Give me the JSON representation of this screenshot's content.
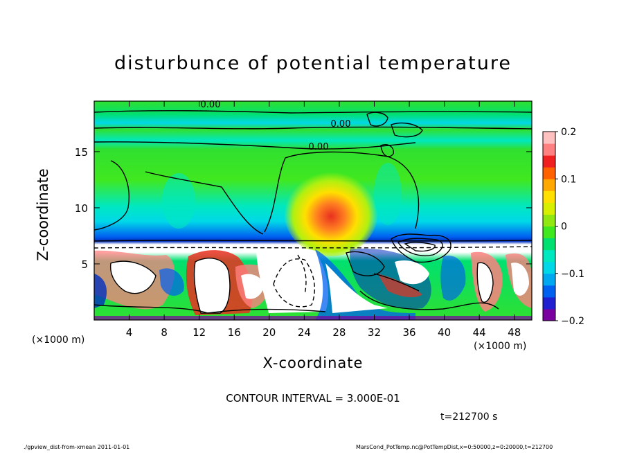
{
  "chart_data": {
    "type": "heatmap",
    "title": "disturbunce of potential temperature",
    "xlabel": "X-coordinate",
    "ylabel": "Z-coordinate",
    "x_unit": "(×1000 m)",
    "y_unit": "(×1000 m)",
    "xlim": [
      0,
      50
    ],
    "ylim": [
      0,
      19.5
    ],
    "x_ticks": [
      4,
      8,
      12,
      16,
      20,
      24,
      28,
      32,
      36,
      40,
      44,
      48
    ],
    "y_ticks": [
      5,
      10,
      15
    ],
    "colorbar": {
      "ticks": [
        0.2,
        0.1,
        0,
        -0.1,
        -0.2
      ],
      "range": [
        -0.2,
        0.2
      ],
      "colors": [
        "#7a00a0",
        "#2020d0",
        "#0060f0",
        "#00a8f0",
        "#00d8e8",
        "#00e8c0",
        "#00e070",
        "#40e820",
        "#90e810",
        "#d8f000",
        "#ffe000",
        "#ffa800",
        "#ff6000",
        "#f02020",
        "#ff8080",
        "#ffc0c0"
      ]
    },
    "contour_labels": [
      "0.00",
      "0.00",
      "0.00"
    ],
    "grid": false,
    "legend": "right (colorbar)"
  },
  "annotations": {
    "contour_interval": "CONTOUR INTERVAL = 3.000E-01",
    "time": "t=212700  s",
    "footer_left": "./gpview_dist-from-xmean  2011-01-01",
    "footer_right": "MarsCond_PotTemp.nc@PotTempDist,x=0:50000,z=0:20000,t=212700"
  },
  "colors": {
    "background": "#ffffff",
    "field_base": "#30e030",
    "warm_core": "#e83020",
    "tropopause_band": "#0030c0"
  }
}
